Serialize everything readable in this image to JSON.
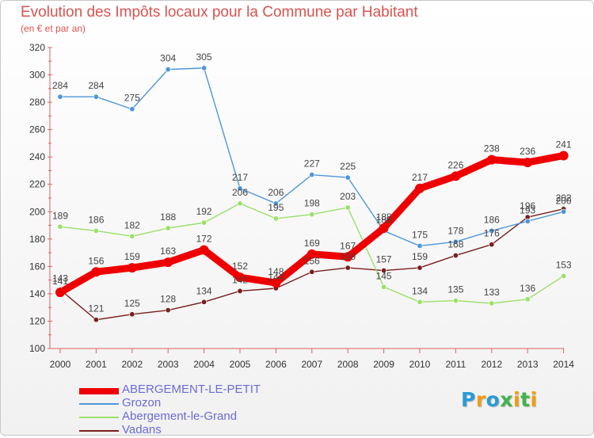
{
  "title": "Evolution des Impôts locaux pour la Commune par Habitant",
  "subtitle": "(en € et par an)",
  "logo": {
    "text": "Proxiti",
    "colors": [
      "#2b9bd6",
      "#f39c12",
      "#2b9bd6",
      "#3fb44a",
      "#f39c12",
      "#3fb44a",
      "#f39c12"
    ]
  },
  "chart_data": {
    "type": "line",
    "categories": [
      "2000",
      "2001",
      "2002",
      "2003",
      "2004",
      "2005",
      "2006",
      "2007",
      "2008",
      "2009",
      "2010",
      "2011",
      "2012",
      "2013",
      "2014"
    ],
    "ylim": [
      100,
      320
    ],
    "yticks": [
      "100",
      "120",
      "140",
      "160",
      "180",
      "200",
      "220",
      "240",
      "260",
      "280",
      "300",
      "320"
    ],
    "grid": false,
    "legend_position": "bottom-left",
    "series": [
      {
        "name": "Vadans",
        "color": "#7a1e1e",
        "values": [
          143,
          121,
          125,
          128,
          134,
          142,
          144,
          156,
          159,
          157,
          159,
          168,
          176,
          196,
          202
        ],
        "labels": [
          "143",
          "121",
          "125",
          "128",
          "134",
          "142",
          "144",
          "156",
          "159",
          "157",
          "159",
          "168",
          "176",
          "196",
          "202"
        ]
      },
      {
        "name": "Abergement-le-Grand",
        "color": "#9be069",
        "values": [
          189,
          186,
          182,
          188,
          192,
          206,
          195,
          198,
          203,
          145,
          134,
          135,
          133,
          136,
          153
        ],
        "labels": [
          "189",
          "186",
          "182",
          "188",
          "192",
          "206",
          "195",
          "198",
          "203",
          "145",
          "134",
          "135",
          "133",
          "136",
          "153"
        ]
      },
      {
        "name": "Grozon",
        "color": "#4d97d8",
        "values": [
          284,
          284,
          275,
          304,
          305,
          217,
          206,
          227,
          225,
          186,
          175,
          178,
          186,
          193,
          200
        ],
        "labels": [
          "284",
          "284",
          "275",
          "304",
          "305",
          "217",
          "206",
          "227",
          "225",
          "186",
          "175",
          "178",
          "186",
          "193",
          "200"
        ]
      },
      {
        "name": "ABERGEMENT-LE-PETIT",
        "color": "#ef0000",
        "values": [
          141,
          156,
          159,
          163,
          172,
          152,
          148,
          169,
          167,
          188,
          217,
          226,
          238,
          236,
          241
        ],
        "labels": [
          "141",
          "156",
          "159",
          "163",
          "172",
          "152",
          "148",
          "169",
          "167",
          "188",
          "217",
          "226",
          "238",
          "236",
          "241"
        ]
      }
    ]
  },
  "legend": [
    {
      "name": "ABERGEMENT-LE-PETIT",
      "color": "#ef0000"
    },
    {
      "name": "Grozon",
      "color": "#4d97d8"
    },
    {
      "name": "Abergement-le-Grand",
      "color": "#9be069"
    },
    {
      "name": "Vadans",
      "color": "#7a1e1e"
    }
  ]
}
